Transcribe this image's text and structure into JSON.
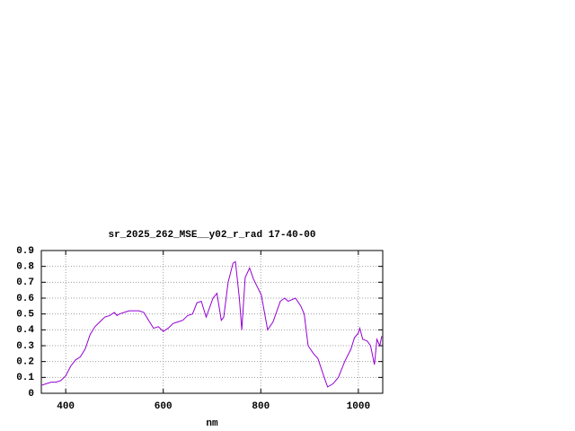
{
  "chart_data": {
    "type": "line",
    "title": "sr_2025_262_MSE__y02_r_rad 17-40-00",
    "xlabel": "nm",
    "x": [
      350,
      360,
      370,
      380,
      390,
      400,
      410,
      420,
      430,
      440,
      450,
      460,
      470,
      480,
      490,
      500,
      505,
      510,
      520,
      530,
      540,
      550,
      560,
      570,
      580,
      590,
      600,
      610,
      620,
      630,
      640,
      650,
      660,
      669,
      678,
      688,
      702,
      710,
      719,
      724,
      733,
      743,
      748,
      756,
      761,
      768,
      777,
      785,
      801,
      814,
      825,
      840,
      849,
      856,
      871,
      882,
      889,
      897,
      908,
      917,
      930,
      937,
      948,
      959,
      972,
      985,
      992,
      1000,
      1003,
      1009,
      1018,
      1025,
      1033,
      1038,
      1044,
      1048
    ],
    "values": [
      0.05,
      0.06,
      0.07,
      0.07,
      0.08,
      0.11,
      0.17,
      0.21,
      0.23,
      0.28,
      0.37,
      0.42,
      0.45,
      0.48,
      0.49,
      0.51,
      0.49,
      0.5,
      0.51,
      0.52,
      0.52,
      0.52,
      0.51,
      0.46,
      0.41,
      0.42,
      0.39,
      0.41,
      0.44,
      0.45,
      0.46,
      0.49,
      0.5,
      0.57,
      0.58,
      0.48,
      0.6,
      0.63,
      0.46,
      0.48,
      0.7,
      0.82,
      0.83,
      0.6,
      0.4,
      0.73,
      0.79,
      0.72,
      0.62,
      0.4,
      0.45,
      0.58,
      0.6,
      0.58,
      0.6,
      0.55,
      0.5,
      0.3,
      0.25,
      0.22,
      0.1,
      0.04,
      0.06,
      0.1,
      0.2,
      0.28,
      0.35,
      0.38,
      0.41,
      0.34,
      0.33,
      0.3,
      0.18,
      0.34,
      0.3,
      0.36
    ],
    "color": "#9400d3",
    "xlim": [
      350,
      1050
    ],
    "xticks": [
      400,
      600,
      800,
      1000
    ],
    "ylim": [
      0,
      0.9
    ],
    "yticks": [
      0,
      0.1,
      0.2,
      0.3,
      0.4,
      0.5,
      0.6,
      0.7,
      0.8,
      0.9
    ],
    "grid": true
  }
}
